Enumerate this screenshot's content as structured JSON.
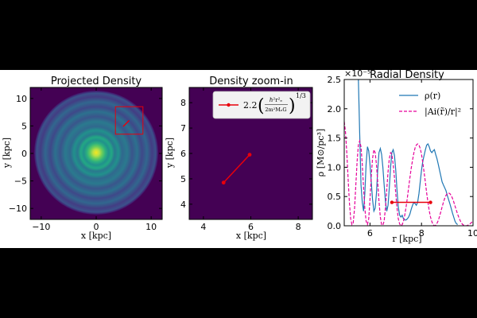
{
  "chart_data": [
    {
      "type": "heatmap",
      "title": "Projected Density",
      "xlabel": "x [kpc]",
      "ylabel": "y [kpc]",
      "xlim": [
        -12,
        12
      ],
      "ylim": [
        -12,
        12
      ],
      "xticks": [
        "−10",
        "0",
        "10"
      ],
      "xtick_values": [
        -10,
        0,
        10
      ],
      "yticks": [
        "10",
        "5",
        "0",
        "−5",
        "−10"
      ],
      "ytick_values": [
        10,
        5,
        0,
        -5,
        -10
      ],
      "colormap": "viridis",
      "annotations": {
        "zoom_box": {
          "x": [
            3.5,
            8.5
          ],
          "y": [
            3.5,
            8.5
          ],
          "color": "#e8000b"
        },
        "segment": {
          "x": [
            4.9,
            6.0
          ],
          "y": [
            4.9,
            6.0
          ],
          "color": "#e8000b"
        }
      }
    },
    {
      "type": "heatmap",
      "title": "Density zoom-in",
      "xlabel": "x [kpc]",
      "ylabel": "y [kpc]",
      "xlim": [
        3.4,
        8.6
      ],
      "ylim": [
        3.4,
        8.6
      ],
      "xticks": [
        "4",
        "6",
        "8"
      ],
      "xtick_values": [
        4,
        6,
        8
      ],
      "yticks": [
        "8",
        "7",
        "6",
        "5",
        "4"
      ],
      "ytick_values": [
        8,
        7,
        6,
        5,
        4
      ],
      "colormap": "viridis",
      "legend": {
        "placement": "top-right",
        "label_prefix": "2.2",
        "label_exponent": "1/3",
        "color": "#e8000b"
      },
      "segment": {
        "x": [
          4.85,
          5.95
        ],
        "y": [
          4.85,
          5.95
        ]
      }
    },
    {
      "type": "line",
      "title": "Radial Density",
      "xlabel": "r [kpc]",
      "ylabel": "ρ [M⊙/pc³]",
      "xlim": [
        5,
        10
      ],
      "ylim": [
        0,
        2.5
      ],
      "y_scale_label": "×10⁻⁵",
      "xticks": [
        "6",
        "8",
        "10"
      ],
      "xtick_values": [
        6,
        8,
        10
      ],
      "yticks": [
        "0.0",
        "0.5",
        "1.0",
        "1.5",
        "2.0",
        "2.5"
      ],
      "ytick_values": [
        0,
        0.5,
        1.0,
        1.5,
        2.0,
        2.5
      ],
      "legend_placement": "top-right",
      "series": [
        {
          "name": "ρ(r)",
          "color": "#1f77b4",
          "style": "solid",
          "x": [
            5.55,
            5.6,
            5.65,
            5.7,
            5.75,
            5.8,
            5.85,
            5.9,
            5.95,
            6.0,
            6.05,
            6.1,
            6.15,
            6.2,
            6.25,
            6.3,
            6.35,
            6.4,
            6.45,
            6.5,
            6.55,
            6.6,
            6.65,
            6.7,
            6.75,
            6.8,
            6.85,
            6.9,
            6.95,
            7.0,
            7.05,
            7.1,
            7.15,
            7.2,
            7.25,
            7.3,
            7.35,
            7.4,
            7.45,
            7.5,
            7.55,
            7.6,
            7.65,
            7.7,
            7.75,
            7.8,
            7.85,
            7.9,
            7.95,
            8.0,
            8.05,
            8.1,
            8.15,
            8.2,
            8.25,
            8.3,
            8.35,
            8.4,
            8.45,
            8.5,
            8.55,
            8.6,
            8.65,
            8.7,
            8.75,
            8.8,
            8.85,
            8.9,
            8.95,
            9.0,
            9.05,
            9.1,
            9.15,
            9.2,
            9.25,
            9.3,
            9.35,
            9.4
          ],
          "y": [
            2.5,
            1.6,
            0.7,
            0.4,
            0.25,
            0.55,
            1.05,
            1.35,
            1.28,
            1.05,
            0.75,
            0.45,
            0.25,
            0.3,
            0.55,
            0.95,
            1.25,
            1.32,
            1.22,
            1.0,
            0.7,
            0.42,
            0.25,
            0.35,
            0.65,
            1.0,
            1.25,
            1.3,
            1.2,
            0.95,
            0.6,
            0.32,
            0.18,
            0.15,
            0.18,
            0.12,
            0.1,
            0.1,
            0.12,
            0.15,
            0.2,
            0.28,
            0.35,
            0.4,
            0.38,
            0.35,
            0.4,
            0.55,
            0.75,
            0.95,
            1.1,
            1.2,
            1.3,
            1.38,
            1.4,
            1.35,
            1.28,
            1.25,
            1.28,
            1.3,
            1.22,
            1.15,
            1.05,
            0.95,
            0.85,
            0.75,
            0.7,
            0.65,
            0.6,
            0.52,
            0.45,
            0.38,
            0.3,
            0.22,
            0.15,
            0.08,
            0.04,
            0.02
          ]
        },
        {
          "name": "|Ai(r̃)/r|²",
          "color": "#e6009a",
          "style": "dashed",
          "x": [
            5.0,
            5.05,
            5.1,
            5.15,
            5.2,
            5.25,
            5.3,
            5.35,
            5.4,
            5.45,
            5.5,
            5.55,
            5.6,
            5.65,
            5.7,
            5.75,
            5.8,
            5.85,
            5.9,
            5.95,
            6.0,
            6.05,
            6.1,
            6.15,
            6.2,
            6.25,
            6.3,
            6.35,
            6.4,
            6.45,
            6.5,
            6.55,
            6.6,
            6.65,
            6.7,
            6.75,
            6.8,
            6.85,
            6.9,
            6.95,
            7.0,
            7.05,
            7.1,
            7.15,
            7.2,
            7.25,
            7.3,
            7.35,
            7.4,
            7.45,
            7.5,
            7.55,
            7.6,
            7.65,
            7.7,
            7.75,
            7.8,
            7.85,
            7.9,
            7.95,
            8.0,
            8.05,
            8.1,
            8.15,
            8.2,
            8.25,
            8.3,
            8.35,
            8.4,
            8.45,
            8.5,
            8.55,
            8.6,
            8.65,
            8.7,
            8.75,
            8.8,
            8.85,
            8.9,
            8.95,
            9.0,
            9.05,
            9.1,
            9.15,
            9.2,
            9.25,
            9.3,
            9.35,
            9.4,
            9.45,
            9.5,
            9.55,
            9.6,
            9.65,
            9.7,
            9.75,
            9.8,
            9.85,
            9.9,
            9.95,
            10.0
          ],
          "y": [
            1.78,
            1.6,
            1.25,
            0.8,
            0.4,
            0.12,
            0.02,
            0.05,
            0.3,
            0.7,
            1.1,
            1.38,
            1.45,
            1.35,
            1.05,
            0.65,
            0.3,
            0.08,
            0.02,
            0.12,
            0.45,
            0.85,
            1.15,
            1.3,
            1.25,
            1.05,
            0.75,
            0.42,
            0.15,
            0.02,
            0.01,
            0.08,
            0.3,
            0.62,
            0.92,
            1.15,
            1.25,
            1.22,
            1.05,
            0.82,
            0.55,
            0.3,
            0.12,
            0.03,
            0.0,
            0.02,
            0.08,
            0.18,
            0.32,
            0.48,
            0.65,
            0.82,
            0.98,
            1.12,
            1.24,
            1.33,
            1.38,
            1.4,
            1.38,
            1.32,
            1.22,
            1.08,
            0.92,
            0.74,
            0.56,
            0.4,
            0.26,
            0.15,
            0.07,
            0.02,
            0.0,
            0.01,
            0.04,
            0.09,
            0.16,
            0.24,
            0.32,
            0.4,
            0.47,
            0.52,
            0.55,
            0.56,
            0.55,
            0.52,
            0.47,
            0.41,
            0.34,
            0.27,
            0.2,
            0.14,
            0.09,
            0.05,
            0.02,
            0.01,
            0.0,
            0.0,
            0.01,
            0.02,
            0.04,
            0.06,
            0.08
          ]
        }
      ],
      "annotations": {
        "hline": {
          "x": [
            6.85,
            8.35
          ],
          "y": 0.4,
          "color": "#e8000b"
        }
      }
    }
  ]
}
